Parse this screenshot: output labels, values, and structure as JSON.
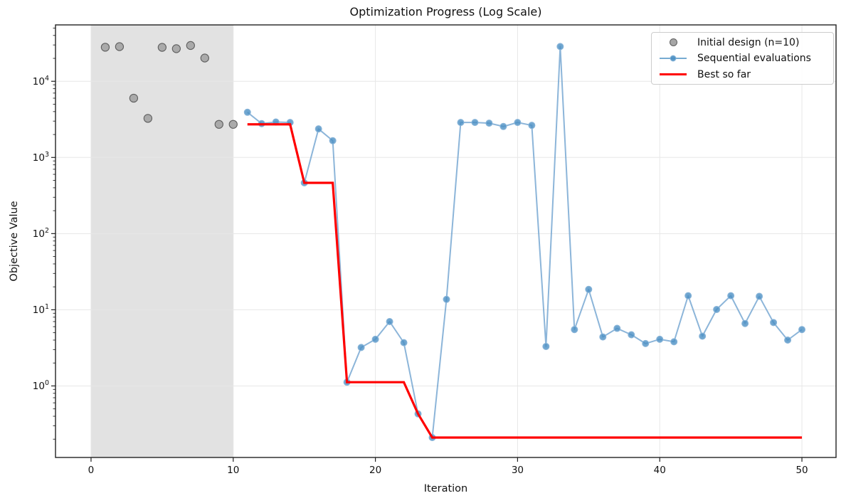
{
  "chart_data": {
    "type": "line",
    "title": "Optimization Progress (Log Scale)",
    "xlabel": "Iteration",
    "ylabel": "Objective Value",
    "y_scale": "log",
    "grid": true,
    "legend_position": "upper right",
    "xlim": [
      -2.5,
      52.4
    ],
    "ylim": [
      0.115,
      55000
    ],
    "x_ticks": [
      0,
      10,
      20,
      30,
      40,
      50
    ],
    "y_tick_exponents": [
      0,
      1,
      2,
      3,
      4
    ],
    "shaded_region": {
      "x0": 0,
      "x1": 10,
      "color": "#e2e2e2"
    },
    "colors": {
      "initial_fill": "#a6a6a6",
      "initial_edge": "#5f5f5f",
      "sequential_line": "#6fa3cf",
      "sequential_marker": "#4a8fc3",
      "sequential_marker_edge": "#86b3d8",
      "best": "#ff0000",
      "grid": "#e7e7e7",
      "spine": "#222222",
      "text": "#111111"
    },
    "series": [
      {
        "name": "Initial design (n=10)",
        "type": "scatter",
        "x": [
          1,
          2,
          3,
          4,
          5,
          6,
          7,
          8,
          9,
          10
        ],
        "y": [
          28000,
          28500,
          6000,
          3260,
          27900,
          26800,
          29500,
          20200,
          2720,
          2720
        ]
      },
      {
        "name": "Sequential evaluations",
        "type": "line_markers",
        "x": [
          11,
          12,
          13,
          14,
          15,
          16,
          17,
          18,
          19,
          20,
          21,
          22,
          23,
          24,
          25,
          26,
          27,
          28,
          29,
          30,
          31,
          32,
          33,
          34,
          35,
          36,
          37,
          38,
          39,
          40,
          41,
          42,
          43,
          44,
          45,
          46,
          47,
          48,
          49,
          50
        ],
        "y": [
          3920,
          2780,
          2920,
          2880,
          464,
          2370,
          1660,
          1.12,
          3.2,
          4.1,
          7.0,
          3.7,
          0.43,
          0.21,
          13.7,
          2880,
          2880,
          2820,
          2550,
          2880,
          2640,
          3.3,
          28600,
          5.5,
          18.5,
          4.4,
          5.7,
          4.7,
          3.6,
          4.1,
          3.8,
          15.3,
          4.5,
          10.1,
          15.3,
          6.6,
          15.0,
          6.8,
          4.0,
          5.5
        ]
      },
      {
        "name": "Best so far",
        "type": "line",
        "x": [
          11,
          12,
          13,
          14,
          15,
          16,
          17,
          18,
          19,
          20,
          21,
          22,
          23,
          24,
          25,
          26,
          27,
          28,
          29,
          30,
          31,
          32,
          33,
          34,
          35,
          36,
          37,
          38,
          39,
          40,
          41,
          42,
          43,
          44,
          45,
          46,
          47,
          48,
          49,
          50
        ],
        "y": [
          2720,
          2720,
          2720,
          2720,
          464,
          464,
          464,
          1.12,
          1.12,
          1.12,
          1.12,
          1.12,
          0.43,
          0.21,
          0.21,
          0.21,
          0.21,
          0.21,
          0.21,
          0.21,
          0.21,
          0.21,
          0.21,
          0.21,
          0.21,
          0.21,
          0.21,
          0.21,
          0.21,
          0.21,
          0.21,
          0.21,
          0.21,
          0.21,
          0.21,
          0.21,
          0.21,
          0.21,
          0.21,
          0.21
        ]
      }
    ]
  }
}
